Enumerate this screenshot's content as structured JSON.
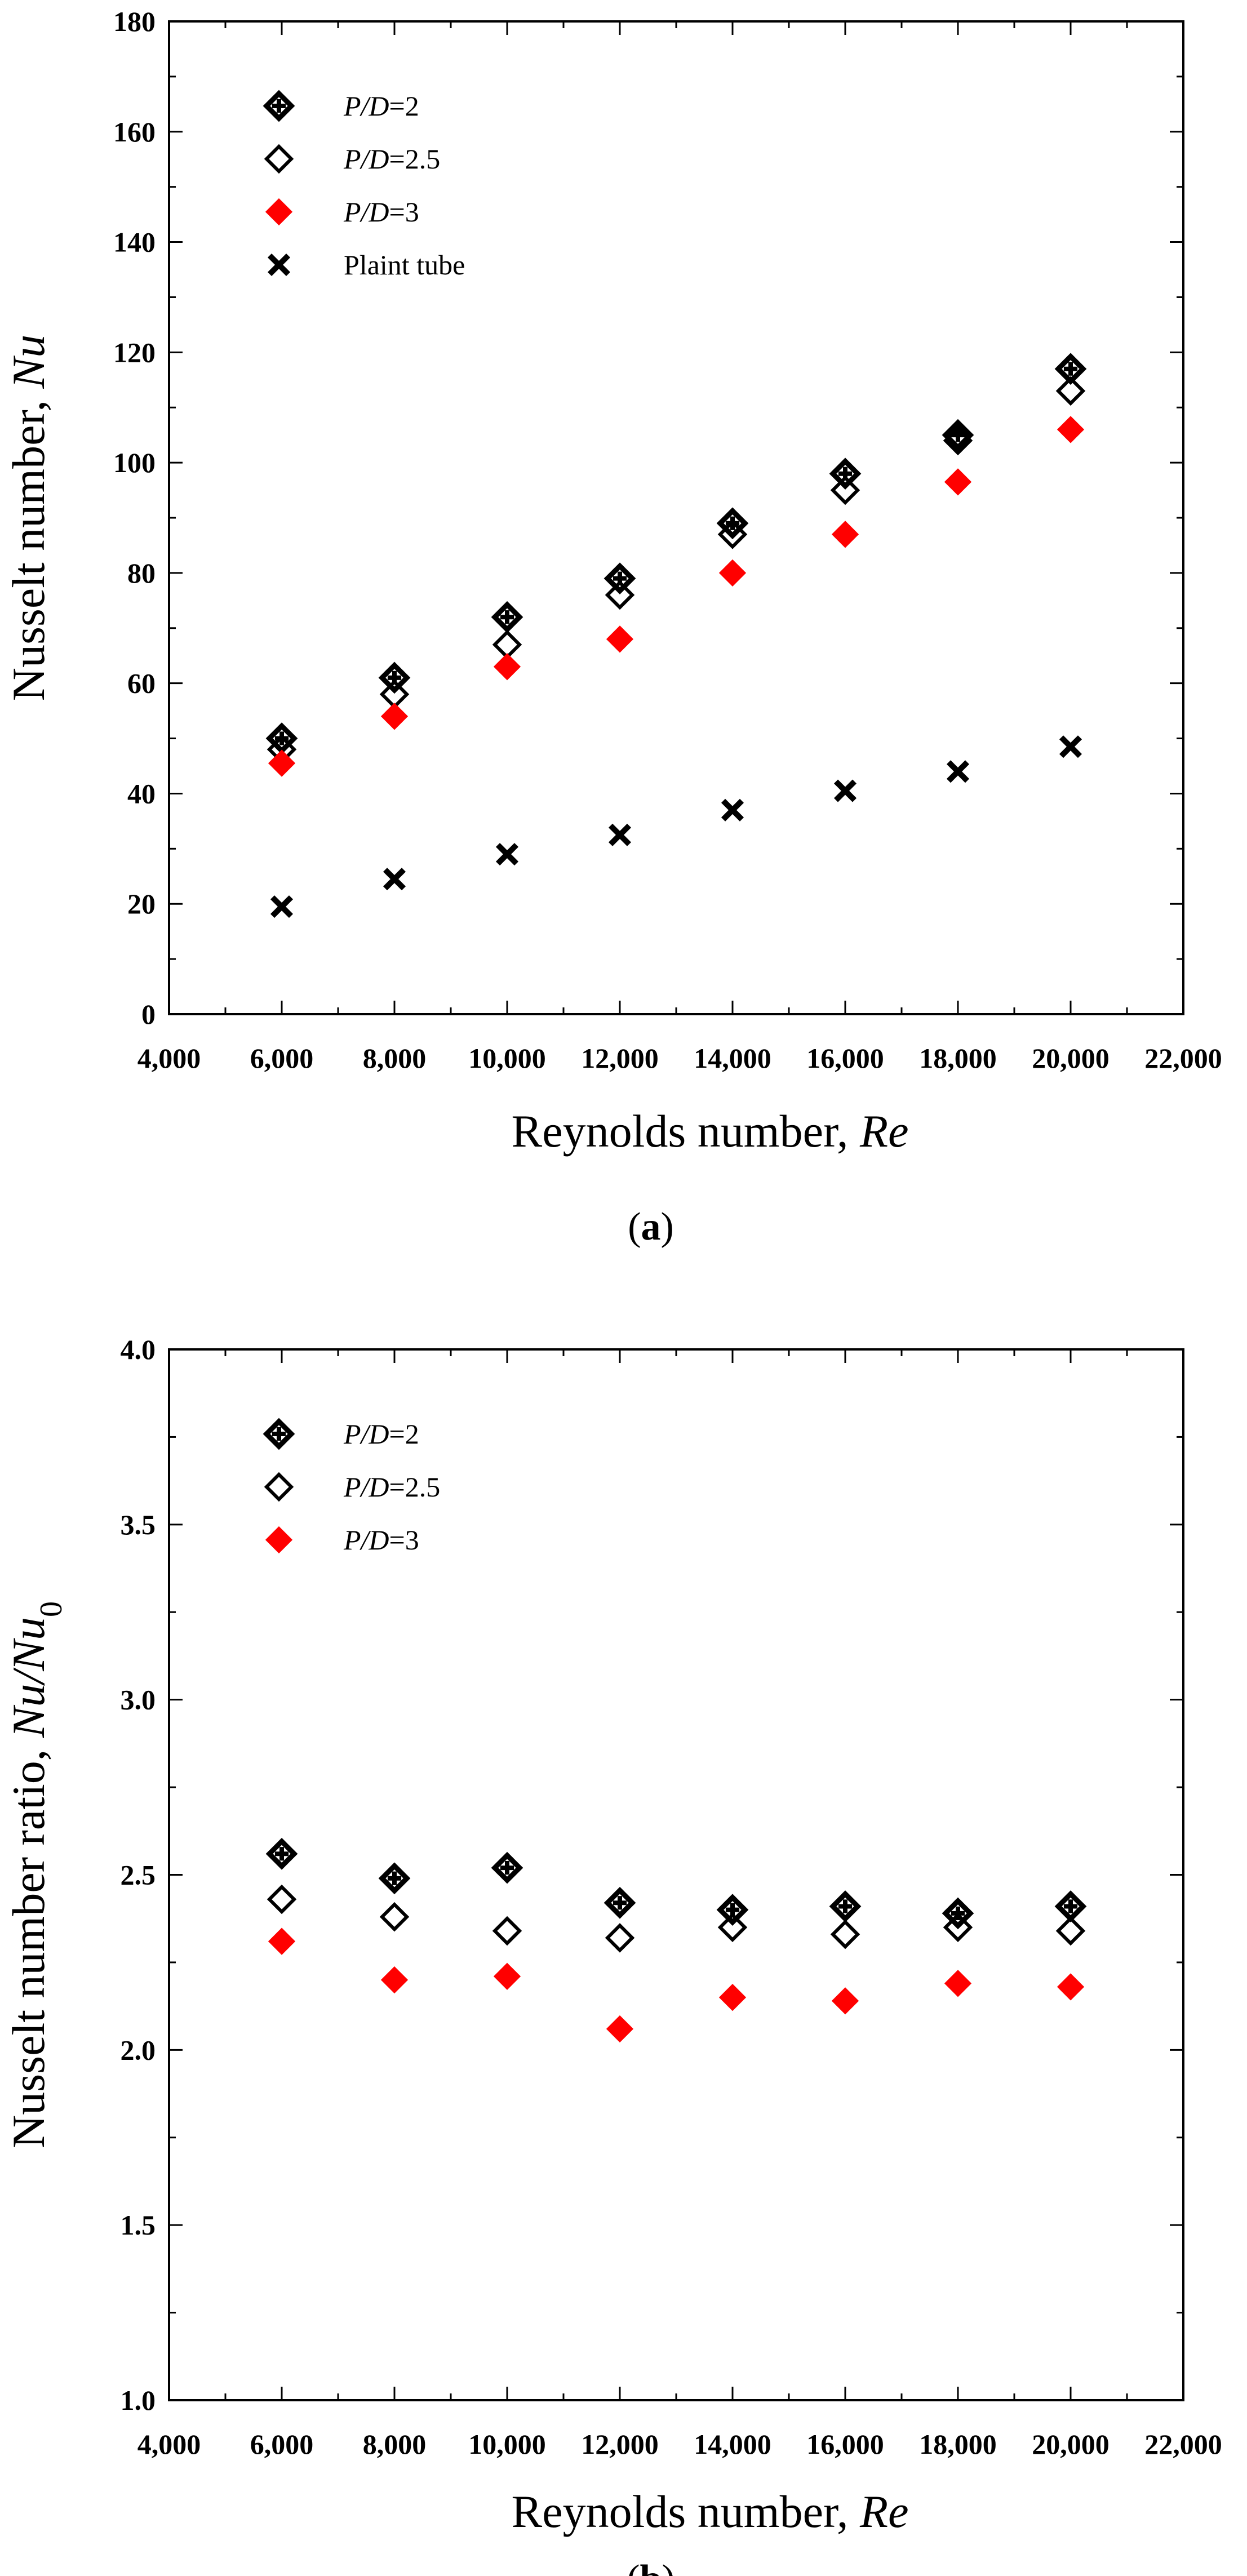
{
  "colors": {
    "red": "#ff0000",
    "black": "#000000"
  },
  "chart_data": [
    {
      "id": "a",
      "type": "scatter",
      "caption_open": "(",
      "caption_letter": "a",
      "caption_close": ")",
      "xlabel_prefix": "Reynolds number, ",
      "xlabel_var": "Re",
      "ylabel_prefix": "Nusselt number, ",
      "ylabel_var": "Nu",
      "ylabel_sub": "",
      "xlim": [
        4000,
        22000
      ],
      "ylim": [
        0,
        180
      ],
      "xticks": [
        4000,
        6000,
        8000,
        10000,
        12000,
        14000,
        16000,
        18000,
        20000,
        22000
      ],
      "xtick_labels": [
        "4,000",
        "6,000",
        "8,000",
        "10,000",
        "12,000",
        "14,000",
        "16,000",
        "18,000",
        "20,000",
        "22,000"
      ],
      "yticks": [
        0,
        20,
        40,
        60,
        80,
        100,
        120,
        140,
        160,
        180
      ],
      "ytick_labels": [
        "0",
        "20",
        "40",
        "60",
        "80",
        "100",
        "120",
        "140",
        "160",
        "180"
      ],
      "x": [
        6000,
        8000,
        10000,
        12000,
        14000,
        16000,
        18000,
        20000
      ],
      "series": [
        {
          "name": "P/D=2",
          "name_var": "P/D",
          "name_val": "=2",
          "marker": "diamond-cross",
          "color": "#000000",
          "values": [
            50,
            61,
            72,
            79,
            89,
            98,
            105,
            117
          ]
        },
        {
          "name": "P/D=2.5",
          "name_var": "P/D",
          "name_val": "=2.5",
          "marker": "diamond-open",
          "color": "#000000",
          "values": [
            48,
            58,
            67,
            76,
            87,
            95,
            104,
            113
          ]
        },
        {
          "name": "P/D=3",
          "name_var": "P/D",
          "name_val": "=3",
          "marker": "diamond-filled",
          "color": "#ff0000",
          "values": [
            45.5,
            54,
            63,
            68,
            80,
            87,
            96.5,
            106
          ]
        },
        {
          "name": "Plaint tube",
          "name_var": "",
          "name_val": "Plaint tube",
          "marker": "x",
          "color": "#000000",
          "values": [
            19.5,
            24.5,
            29,
            32.5,
            37,
            40.5,
            44,
            48.5
          ]
        }
      ]
    },
    {
      "id": "b",
      "type": "scatter",
      "caption_open": "(",
      "caption_letter": "b",
      "caption_close": ")",
      "xlabel_prefix": "Reynolds number, ",
      "xlabel_var": "Re",
      "ylabel_prefix": "Nusselt number ratio, ",
      "ylabel_var": "Nu/Nu",
      "ylabel_sub": "0",
      "xlim": [
        4000,
        22000
      ],
      "ylim": [
        1.0,
        4.0
      ],
      "xticks": [
        4000,
        6000,
        8000,
        10000,
        12000,
        14000,
        16000,
        18000,
        20000,
        22000
      ],
      "xtick_labels": [
        "4,000",
        "6,000",
        "8,000",
        "10,000",
        "12,000",
        "14,000",
        "16,000",
        "18,000",
        "20,000",
        "22,000"
      ],
      "yticks": [
        1.0,
        1.5,
        2.0,
        2.5,
        3.0,
        3.5,
        4.0
      ],
      "ytick_labels": [
        "1.0",
        "1.5",
        "2.0",
        "2.5",
        "3.0",
        "3.5",
        "4.0"
      ],
      "x": [
        6000,
        8000,
        10000,
        12000,
        14000,
        16000,
        18000,
        20000
      ],
      "series": [
        {
          "name": "P/D=2",
          "name_var": "P/D",
          "name_val": "=2",
          "marker": "diamond-cross",
          "color": "#000000",
          "values": [
            2.56,
            2.49,
            2.52,
            2.42,
            2.4,
            2.41,
            2.39,
            2.41
          ]
        },
        {
          "name": "P/D=2.5",
          "name_var": "P/D",
          "name_val": "=2.5",
          "marker": "diamond-open",
          "color": "#000000",
          "values": [
            2.43,
            2.38,
            2.34,
            2.32,
            2.35,
            2.33,
            2.35,
            2.34
          ]
        },
        {
          "name": "P/D=3",
          "name_var": "P/D",
          "name_val": "=3",
          "marker": "diamond-filled",
          "color": "#ff0000",
          "values": [
            2.31,
            2.2,
            2.21,
            2.06,
            2.15,
            2.14,
            2.19,
            2.18
          ]
        }
      ]
    }
  ]
}
